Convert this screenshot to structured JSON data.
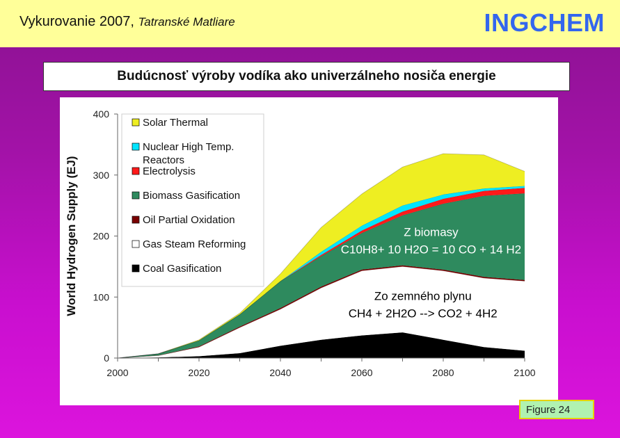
{
  "header": {
    "title": "Vykurovanie 2007,",
    "subtitle": "Tatranské Matliare",
    "brand": "INGCHEM"
  },
  "slide_title": "Budúcnosť výroby vodíka ako univerzálneho nosiča energie",
  "figure_label": "Figure 24",
  "colors": {
    "header_bg": "#ffff99",
    "brand": "#3366ee",
    "coal": "#000000",
    "gas_steam": "#ffffff",
    "oil": "#7a0000",
    "biomass": "#2e8a5e",
    "electrolysis": "#ff1a1a",
    "nuclear": "#00e5ff",
    "solar": "#eeee22"
  },
  "chart_data": {
    "type": "area",
    "stacked": true,
    "ylabel": "World Hydrogen Supply (EJ)",
    "xlabel": "",
    "x": [
      2000,
      2010,
      2020,
      2030,
      2040,
      2050,
      2060,
      2070,
      2080,
      2090,
      2100
    ],
    "xlim": [
      2000,
      2100
    ],
    "ylim": [
      0,
      400
    ],
    "xticks": [
      2000,
      2020,
      2040,
      2060,
      2080,
      2100
    ],
    "yticks": [
      0,
      100,
      200,
      300,
      400
    ],
    "legend_position": "top-left",
    "series": [
      {
        "name": "Coal Gasification",
        "color": "#000000",
        "values": [
          0,
          1,
          3,
          8,
          20,
          30,
          37,
          42,
          30,
          18,
          12
        ]
      },
      {
        "name": "Gas Steam Reforming",
        "color": "#ffffff",
        "values": [
          0,
          3,
          15,
          42,
          60,
          85,
          106,
          108,
          113,
          113,
          114
        ]
      },
      {
        "name": "Oil Partial Oxidation",
        "color": "#7a0000",
        "values": [
          0,
          0.5,
          1,
          1.5,
          2,
          2,
          2,
          2,
          2,
          2,
          2
        ]
      },
      {
        "name": "Biomass Gasification",
        "color": "#2e8a5e",
        "values": [
          0,
          2.5,
          10,
          20,
          44,
          50,
          60,
          82,
          108,
          133,
          142
        ]
      },
      {
        "name": "Electrolysis",
        "color": "#ff1a1a",
        "values": [
          0,
          0,
          0,
          0,
          0,
          2,
          4,
          6,
          8,
          8,
          9
        ]
      },
      {
        "name": "Nuclear High Temp. Reactors",
        "color": "#00e5ff",
        "values": [
          0,
          0,
          0,
          0,
          0,
          5,
          8,
          10,
          7,
          4,
          3
        ]
      },
      {
        "name": "Solar Thermal",
        "color": "#eeee22",
        "values": [
          0,
          0,
          1,
          2,
          12,
          40,
          52,
          63,
          67,
          55,
          24
        ]
      }
    ],
    "legend_order": [
      "Solar Thermal",
      "Nuclear High Temp. Reactors",
      "Electrolysis",
      "Biomass Gasification",
      "Oil Partial Oxidation",
      "Gas Steam Reforming",
      "Coal Gasification"
    ],
    "annotations": [
      {
        "lines": [
          "Z biomasy",
          "C10H8+ 10 H2O = 10 CO + 14 H2"
        ],
        "x": 2077,
        "y": 200,
        "color": "#ffffff"
      },
      {
        "lines": [
          "Zo zemného plynu",
          "CH4 + 2H2O --> CO2 + 4H2"
        ],
        "x": 2075,
        "y": 95,
        "color": "#000000"
      }
    ]
  }
}
